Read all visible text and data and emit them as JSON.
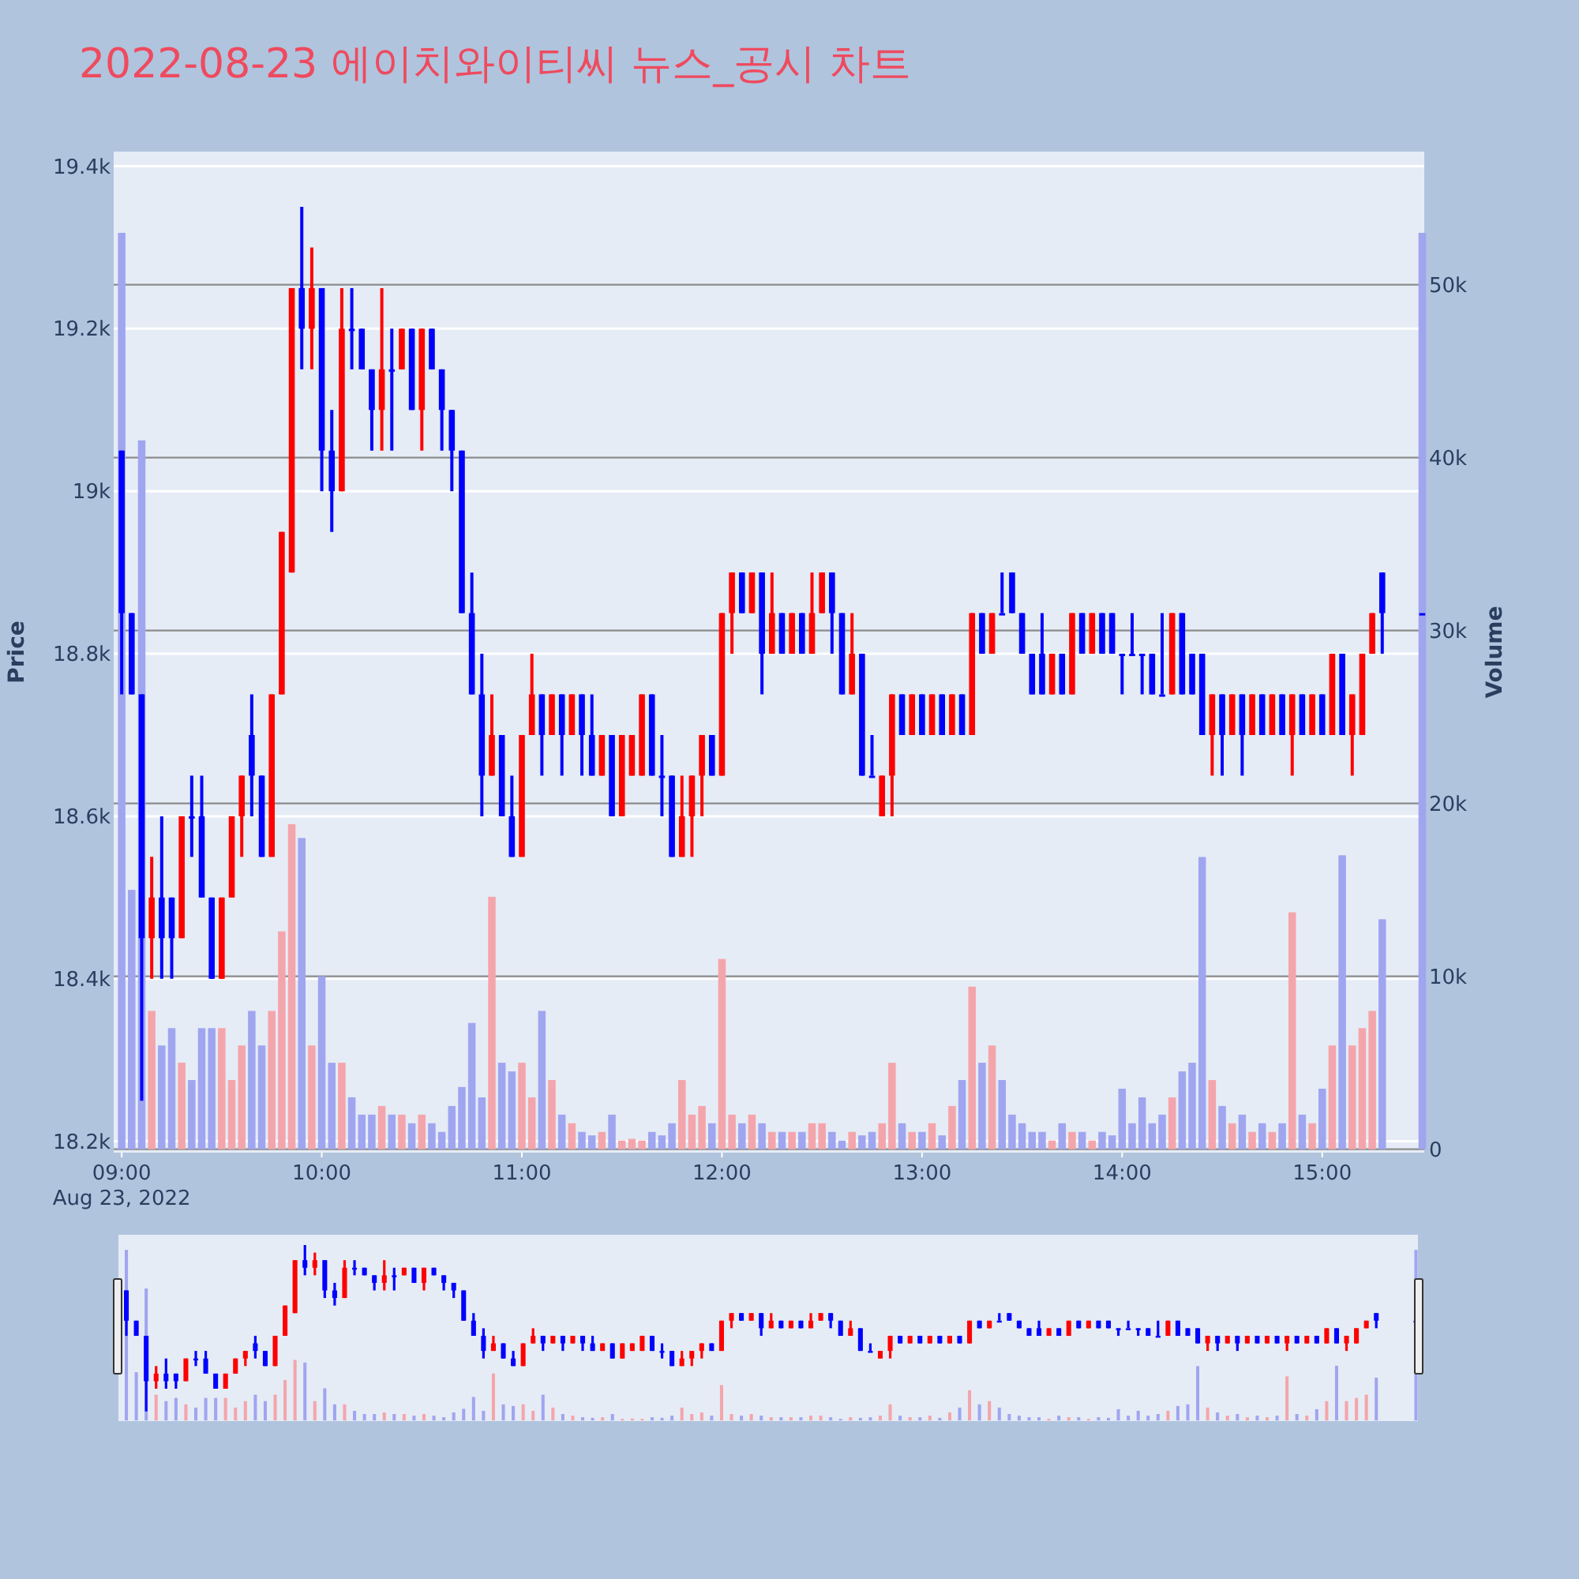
{
  "chart_data": {
    "type": "candlestick",
    "title": "2022-08-23 에이치와이티씨 뉴스_공시 차트",
    "ylabel": "Price",
    "y2label": "Volume",
    "annotations": [
      "Aug 23, 2022"
    ],
    "grid": "y",
    "xlim": [
      8.96,
      15.51
    ],
    "xticks": [
      {
        "value": 9,
        "label": "09:00"
      },
      {
        "value": 10,
        "label": "10:00"
      },
      {
        "value": 11,
        "label": "11:00"
      },
      {
        "value": 12,
        "label": "12:00"
      },
      {
        "value": 13,
        "label": "13:00"
      },
      {
        "value": 14,
        "label": "14:00"
      },
      {
        "value": 15,
        "label": "15:00"
      }
    ],
    "ylim": [
      18186,
      19418
    ],
    "yticks": [
      {
        "value": 18200,
        "label": "18.2k"
      },
      {
        "value": 18400,
        "label": "18.4k"
      },
      {
        "value": 18600,
        "label": "18.6k"
      },
      {
        "value": 18800,
        "label": "18.8k"
      },
      {
        "value": 19000,
        "label": "19k"
      },
      {
        "value": 19200,
        "label": "19.2k"
      },
      {
        "value": 19400,
        "label": "19.4k"
      }
    ],
    "y2lim": [
      -200,
      57700
    ],
    "y2ticks": [
      0,
      {
        "value": 10000,
        "label": "10k"
      },
      {
        "value": 20000,
        "label": "20k"
      },
      {
        "value": 30000,
        "label": "30k"
      },
      {
        "value": 40000,
        "label": "40k"
      },
      {
        "value": 50000,
        "label": "50k"
      }
    ],
    "x": [
      9.0,
      9.05,
      9.1,
      9.15,
      9.2,
      9.25,
      9.3,
      9.35,
      9.4,
      9.45,
      9.5,
      9.55,
      9.6,
      9.65,
      9.7,
      9.75,
      9.8,
      9.85,
      9.9,
      9.95,
      10.0,
      10.05,
      10.1,
      10.15,
      10.2,
      10.25,
      10.3,
      10.35,
      10.4,
      10.45,
      10.5,
      10.55,
      10.6,
      10.65,
      10.7,
      10.75,
      10.8,
      10.85,
      10.9,
      10.95,
      11.0,
      11.05,
      11.1,
      11.15,
      11.2,
      11.25,
      11.3,
      11.35,
      11.4,
      11.45,
      11.5,
      11.55,
      11.6,
      11.65,
      11.7,
      11.75,
      11.8,
      11.85,
      11.9,
      11.95,
      12.0,
      12.05,
      12.1,
      12.15,
      12.2,
      12.25,
      12.3,
      12.35,
      12.4,
      12.45,
      12.5,
      12.55,
      12.6,
      12.65,
      12.7,
      12.75,
      12.8,
      12.85,
      12.9,
      12.95,
      13.0,
      13.05,
      13.1,
      13.15,
      13.2,
      13.25,
      13.3,
      13.35,
      13.4,
      13.45,
      13.5,
      13.55,
      13.6,
      13.65,
      13.7,
      13.75,
      13.8,
      13.85,
      13.9,
      13.95,
      14.0,
      14.05,
      14.1,
      14.15,
      14.2,
      14.25,
      14.3,
      14.35,
      14.4,
      14.45,
      14.5,
      14.55,
      14.6,
      14.65,
      14.7,
      14.75,
      14.8,
      14.85,
      14.9,
      14.95,
      15.0,
      15.05,
      15.1,
      15.15,
      15.2,
      15.25,
      15.3,
      15.5
    ],
    "series": [
      {
        "type": "candlestick",
        "ohlc": [
          [
            19050,
            19050,
            18750,
            18850
          ],
          [
            18850,
            18850,
            18750,
            18750
          ],
          [
            18750,
            18750,
            18250,
            18450
          ],
          [
            18450,
            18550,
            18400,
            18500
          ],
          [
            18500,
            18600,
            18400,
            18450
          ],
          [
            18500,
            18500,
            18400,
            18450
          ],
          [
            18450,
            18600,
            18450,
            18600
          ],
          [
            18600,
            18650,
            18550,
            18600
          ],
          [
            18600,
            18650,
            18500,
            18500
          ],
          [
            18500,
            18500,
            18400,
            18400
          ],
          [
            18400,
            18500,
            18400,
            18500
          ],
          [
            18500,
            18600,
            18500,
            18600
          ],
          [
            18600,
            18650,
            18550,
            18650
          ],
          [
            18700,
            18750,
            18600,
            18650
          ],
          [
            18650,
            18650,
            18550,
            18550
          ],
          [
            18550,
            18750,
            18550,
            18750
          ],
          [
            18750,
            18950,
            18750,
            18950
          ],
          [
            18900,
            19250,
            18900,
            19250
          ],
          [
            19250,
            19350,
            19150,
            19200
          ],
          [
            19200,
            19300,
            19150,
            19250
          ],
          [
            19250,
            19250,
            19000,
            19050
          ],
          [
            19050,
            19100,
            18950,
            19000
          ],
          [
            19000,
            19250,
            19000,
            19200
          ],
          [
            19200,
            19250,
            19150,
            19200
          ],
          [
            19200,
            19200,
            19150,
            19150
          ],
          [
            19150,
            19150,
            19050,
            19100
          ],
          [
            19100,
            19250,
            19050,
            19150
          ],
          [
            19150,
            19200,
            19050,
            19150
          ],
          [
            19150,
            19200,
            19150,
            19200
          ],
          [
            19200,
            19200,
            19100,
            19100
          ],
          [
            19100,
            19200,
            19050,
            19200
          ],
          [
            19200,
            19200,
            19150,
            19150
          ],
          [
            19150,
            19150,
            19050,
            19100
          ],
          [
            19100,
            19100,
            19000,
            19050
          ],
          [
            19050,
            19050,
            18850,
            18850
          ],
          [
            18850,
            18900,
            18750,
            18750
          ],
          [
            18750,
            18800,
            18600,
            18650
          ],
          [
            18650,
            18750,
            18650,
            18700
          ],
          [
            18700,
            18700,
            18600,
            18600
          ],
          [
            18600,
            18650,
            18550,
            18550
          ],
          [
            18550,
            18700,
            18550,
            18700
          ],
          [
            18700,
            18800,
            18700,
            18750
          ],
          [
            18750,
            18750,
            18650,
            18700
          ],
          [
            18700,
            18750,
            18700,
            18750
          ],
          [
            18750,
            18750,
            18650,
            18700
          ],
          [
            18700,
            18750,
            18700,
            18750
          ],
          [
            18750,
            18750,
            18650,
            18700
          ],
          [
            18700,
            18750,
            18650,
            18650
          ],
          [
            18650,
            18700,
            18650,
            18700
          ],
          [
            18700,
            18700,
            18600,
            18600
          ],
          [
            18600,
            18700,
            18600,
            18700
          ],
          [
            18650,
            18700,
            18650,
            18700
          ],
          [
            18650,
            18750,
            18650,
            18750
          ],
          [
            18750,
            18750,
            18650,
            18650
          ],
          [
            18650,
            18700,
            18600,
            18650
          ],
          [
            18650,
            18650,
            18550,
            18550
          ],
          [
            18550,
            18650,
            18550,
            18600
          ],
          [
            18600,
            18650,
            18550,
            18650
          ],
          [
            18650,
            18700,
            18600,
            18700
          ],
          [
            18700,
            18700,
            18650,
            18650
          ],
          [
            18650,
            18850,
            18650,
            18850
          ],
          [
            18850,
            18900,
            18800,
            18900
          ],
          [
            18900,
            18900,
            18850,
            18850
          ],
          [
            18850,
            18900,
            18850,
            18900
          ],
          [
            18900,
            18900,
            18750,
            18800
          ],
          [
            18800,
            18900,
            18800,
            18850
          ],
          [
            18850,
            18850,
            18800,
            18800
          ],
          [
            18800,
            18850,
            18800,
            18850
          ],
          [
            18850,
            18850,
            18800,
            18800
          ],
          [
            18800,
            18900,
            18800,
            18850
          ],
          [
            18850,
            18900,
            18850,
            18900
          ],
          [
            18900,
            18900,
            18800,
            18850
          ],
          [
            18850,
            18850,
            18750,
            18750
          ],
          [
            18750,
            18850,
            18750,
            18800
          ],
          [
            18800,
            18800,
            18650,
            18650
          ],
          [
            18650,
            18700,
            18650,
            18650
          ],
          [
            18600,
            18650,
            18600,
            18650
          ],
          [
            18650,
            18750,
            18600,
            18750
          ],
          [
            18750,
            18750,
            18700,
            18700
          ],
          [
            18700,
            18750,
            18700,
            18750
          ],
          [
            18750,
            18750,
            18700,
            18700
          ],
          [
            18700,
            18750,
            18700,
            18750
          ],
          [
            18750,
            18750,
            18700,
            18700
          ],
          [
            18700,
            18750,
            18700,
            18750
          ],
          [
            18750,
            18750,
            18700,
            18700
          ],
          [
            18700,
            18850,
            18700,
            18850
          ],
          [
            18850,
            18850,
            18800,
            18800
          ],
          [
            18800,
            18850,
            18800,
            18850
          ],
          [
            18850,
            18900,
            18850,
            18850
          ],
          [
            18900,
            18900,
            18850,
            18850
          ],
          [
            18850,
            18850,
            18800,
            18800
          ],
          [
            18800,
            18800,
            18750,
            18750
          ],
          [
            18800,
            18850,
            18750,
            18750
          ],
          [
            18750,
            18800,
            18750,
            18800
          ],
          [
            18800,
            18800,
            18750,
            18750
          ],
          [
            18750,
            18850,
            18750,
            18850
          ],
          [
            18850,
            18850,
            18800,
            18800
          ],
          [
            18800,
            18850,
            18800,
            18850
          ],
          [
            18850,
            18850,
            18800,
            18800
          ],
          [
            18850,
            18850,
            18800,
            18800
          ],
          [
            18800,
            18800,
            18750,
            18800
          ],
          [
            18800,
            18850,
            18800,
            18800
          ],
          [
            18800,
            18800,
            18750,
            18800
          ],
          [
            18800,
            18800,
            18750,
            18750
          ],
          [
            18750,
            18850,
            18750,
            18750
          ],
          [
            18750,
            18850,
            18750,
            18850
          ],
          [
            18850,
            18850,
            18750,
            18750
          ],
          [
            18800,
            18800,
            18750,
            18750
          ],
          [
            18800,
            18800,
            18700,
            18700
          ],
          [
            18700,
            18750,
            18650,
            18750
          ],
          [
            18750,
            18750,
            18650,
            18700
          ],
          [
            18700,
            18750,
            18700,
            18750
          ],
          [
            18750,
            18750,
            18650,
            18700
          ],
          [
            18700,
            18750,
            18700,
            18750
          ],
          [
            18750,
            18750,
            18700,
            18700
          ],
          [
            18700,
            18750,
            18700,
            18750
          ],
          [
            18750,
            18750,
            18700,
            18700
          ],
          [
            18700,
            18750,
            18650,
            18750
          ],
          [
            18750,
            18750,
            18700,
            18700
          ],
          [
            18700,
            18750,
            18700,
            18750
          ],
          [
            18750,
            18750,
            18700,
            18700
          ],
          [
            18700,
            18800,
            18700,
            18800
          ],
          [
            18800,
            18800,
            18700,
            18700
          ],
          [
            18700,
            18750,
            18650,
            18750
          ],
          [
            18700,
            18800,
            18700,
            18800
          ],
          [
            18800,
            18850,
            18800,
            18850
          ],
          [
            18900,
            18900,
            18800,
            18850
          ],
          [
            18850,
            18850,
            18850,
            18850
          ]
        ],
        "colors": [
          "#0000ff",
          "#0000ff",
          "#0000ff",
          "#ff0000",
          "#0000ff",
          "#0000ff",
          "#ff0000",
          "#0000ff",
          "#0000ff",
          "#0000ff",
          "#ff0000",
          "#ff0000",
          "#ff0000",
          "#0000ff",
          "#0000ff",
          "#ff0000",
          "#ff0000",
          "#ff0000",
          "#0000ff",
          "#ff0000",
          "#0000ff",
          "#0000ff",
          "#ff0000",
          "#0000ff",
          "#0000ff",
          "#0000ff",
          "#ff0000",
          "#0000ff",
          "#ff0000",
          "#0000ff",
          "#ff0000",
          "#0000ff",
          "#0000ff",
          "#0000ff",
          "#0000ff",
          "#0000ff",
          "#0000ff",
          "#ff0000",
          "#0000ff",
          "#0000ff",
          "#ff0000",
          "#ff0000",
          "#0000ff",
          "#ff0000",
          "#0000ff",
          "#ff0000",
          "#0000ff",
          "#0000ff",
          "#ff0000",
          "#0000ff",
          "#ff0000",
          "#ff0000",
          "#ff0000",
          "#0000ff",
          "#0000ff",
          "#0000ff",
          "#ff0000",
          "#ff0000",
          "#ff0000",
          "#0000ff",
          "#ff0000",
          "#ff0000",
          "#0000ff",
          "#ff0000",
          "#0000ff",
          "#ff0000",
          "#0000ff",
          "#ff0000",
          "#0000ff",
          "#ff0000",
          "#ff0000",
          "#0000ff",
          "#0000ff",
          "#ff0000",
          "#0000ff",
          "#0000ff",
          "#ff0000",
          "#ff0000",
          "#0000ff",
          "#ff0000",
          "#0000ff",
          "#ff0000",
          "#0000ff",
          "#ff0000",
          "#0000ff",
          "#ff0000",
          "#0000ff",
          "#ff0000",
          "#0000ff",
          "#0000ff",
          "#0000ff",
          "#0000ff",
          "#0000ff",
          "#ff0000",
          "#0000ff",
          "#ff0000",
          "#0000ff",
          "#ff0000",
          "#0000ff",
          "#0000ff",
          "#0000ff",
          "#0000ff",
          "#0000ff",
          "#0000ff",
          "#0000ff",
          "#ff0000",
          "#0000ff",
          "#0000ff",
          "#0000ff",
          "#ff0000",
          "#0000ff",
          "#ff0000",
          "#0000ff",
          "#ff0000",
          "#0000ff",
          "#ff0000",
          "#0000ff",
          "#ff0000",
          "#0000ff",
          "#ff0000",
          "#0000ff",
          "#ff0000",
          "#0000ff",
          "#ff0000",
          "#ff0000",
          "#ff0000",
          "#0000ff",
          "#0000ff"
        ]
      },
      {
        "type": "bar",
        "axis": "y2",
        "values": [
          53000,
          15000,
          41000,
          8000,
          6000,
          7000,
          5000,
          4000,
          7000,
          7000,
          7000,
          4000,
          6000,
          8000,
          6000,
          8000,
          12600,
          18800,
          18000,
          6000,
          10000,
          5000,
          5000,
          3000,
          2000,
          2000,
          2500,
          2000,
          2000,
          1500,
          2000,
          1500,
          1000,
          2500,
          3600,
          7300,
          3000,
          14600,
          5000,
          4500,
          5000,
          3000,
          8000,
          4000,
          2000,
          1500,
          1000,
          800,
          1000,
          2000,
          500,
          600,
          500,
          1000,
          800,
          1500,
          4000,
          2000,
          2500,
          1500,
          11000,
          2000,
          1500,
          2000,
          1500,
          1000,
          1000,
          1000,
          1000,
          1500,
          1500,
          1000,
          500,
          1000,
          800,
          1000,
          1500,
          5000,
          1500,
          1000,
          1000,
          1500,
          800,
          2500,
          4000,
          9400,
          5000,
          6000,
          4000,
          2000,
          1500,
          1000,
          1000,
          500,
          1500,
          1000,
          1000,
          500,
          1000,
          800,
          3500,
          1500,
          3000,
          1500,
          2000,
          3000,
          4500,
          5000,
          16900,
          4000,
          2500,
          1500,
          2000,
          1000,
          1500,
          1000,
          1500,
          13700,
          2000,
          1500,
          3500,
          6000,
          17000,
          6000,
          7000,
          8000,
          13300,
          53000
        ],
        "colors": [
          "#a0a5f0",
          "#a0a5f0",
          "#a0a5f0",
          "#f4a5ab",
          "#a0a5f0",
          "#a0a5f0",
          "#f4a5ab",
          "#a0a5f0",
          "#a0a5f0",
          "#a0a5f0",
          "#f4a5ab",
          "#f4a5ab",
          "#f4a5ab",
          "#a0a5f0",
          "#a0a5f0",
          "#f4a5ab",
          "#f4a5ab",
          "#f4a5ab",
          "#a0a5f0",
          "#f4a5ab",
          "#a0a5f0",
          "#a0a5f0",
          "#f4a5ab",
          "#a0a5f0",
          "#a0a5f0",
          "#a0a5f0",
          "#f4a5ab",
          "#a0a5f0",
          "#f4a5ab",
          "#a0a5f0",
          "#f4a5ab",
          "#a0a5f0",
          "#a0a5f0",
          "#a0a5f0",
          "#a0a5f0",
          "#a0a5f0",
          "#a0a5f0",
          "#f4a5ab",
          "#a0a5f0",
          "#a0a5f0",
          "#f4a5ab",
          "#f4a5ab",
          "#a0a5f0",
          "#f4a5ab",
          "#a0a5f0",
          "#f4a5ab",
          "#a0a5f0",
          "#a0a5f0",
          "#f4a5ab",
          "#a0a5f0",
          "#f4a5ab",
          "#f4a5ab",
          "#f4a5ab",
          "#a0a5f0",
          "#a0a5f0",
          "#a0a5f0",
          "#f4a5ab",
          "#f4a5ab",
          "#f4a5ab",
          "#a0a5f0",
          "#f4a5ab",
          "#f4a5ab",
          "#a0a5f0",
          "#f4a5ab",
          "#a0a5f0",
          "#f4a5ab",
          "#a0a5f0",
          "#f4a5ab",
          "#a0a5f0",
          "#f4a5ab",
          "#f4a5ab",
          "#a0a5f0",
          "#a0a5f0",
          "#f4a5ab",
          "#a0a5f0",
          "#a0a5f0",
          "#f4a5ab",
          "#f4a5ab",
          "#a0a5f0",
          "#f4a5ab",
          "#a0a5f0",
          "#f4a5ab",
          "#a0a5f0",
          "#f4a5ab",
          "#a0a5f0",
          "#f4a5ab",
          "#a0a5f0",
          "#f4a5ab",
          "#a0a5f0",
          "#a0a5f0",
          "#a0a5f0",
          "#a0a5f0",
          "#a0a5f0",
          "#f4a5ab",
          "#a0a5f0",
          "#f4a5ab",
          "#a0a5f0",
          "#f4a5ab",
          "#a0a5f0",
          "#a0a5f0",
          "#a0a5f0",
          "#a0a5f0",
          "#a0a5f0",
          "#a0a5f0",
          "#a0a5f0",
          "#f4a5ab",
          "#a0a5f0",
          "#a0a5f0",
          "#a0a5f0",
          "#f4a5ab",
          "#a0a5f0",
          "#f4a5ab",
          "#a0a5f0",
          "#f4a5ab",
          "#a0a5f0",
          "#f4a5ab",
          "#a0a5f0",
          "#f4a5ab",
          "#a0a5f0",
          "#f4a5ab",
          "#a0a5f0",
          "#f4a5ab",
          "#a0a5f0",
          "#f4a5ab",
          "#f4a5ab",
          "#f4a5ab",
          "#a0a5f0",
          "#a0a5f0"
        ]
      }
    ]
  }
}
